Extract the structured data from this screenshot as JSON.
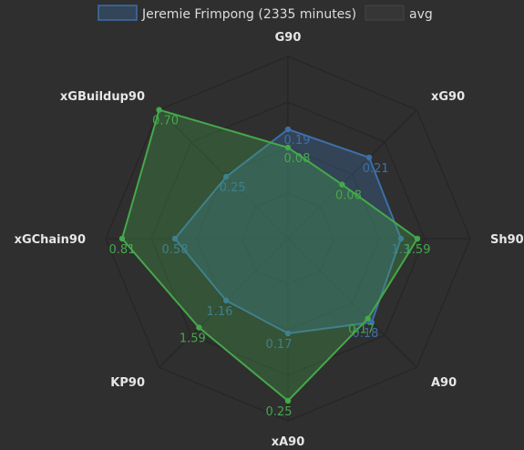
{
  "chart_data": {
    "type": "radar",
    "axes": [
      "G90",
      "xG90",
      "Sh90",
      "A90",
      "xA90",
      "KP90",
      "xGChain90",
      "xGBuildup90"
    ],
    "series": [
      {
        "name": "Jeremie Frimpong (2335 minutes)",
        "color": "#3d6fa8",
        "values": [
          0.19,
          0.21,
          1.3,
          0.18,
          0.17,
          1.16,
          0.58,
          0.25
        ],
        "labels": [
          "0.19",
          "0.21",
          "1.3",
          "0.18",
          "0.17",
          "1.16",
          "0.58",
          "0.25"
        ],
        "radii": [
          0.6,
          0.63,
          0.62,
          0.65,
          0.52,
          0.48,
          0.62,
          0.48
        ]
      },
      {
        "name": "avg",
        "color": "#45a84b",
        "values": [
          0.08,
          0.08,
          1.59,
          0.17,
          0.25,
          1.59,
          0.81,
          0.7
        ],
        "labels": [
          "0.08",
          "0.08",
          "1.59",
          "0.17",
          "0.25",
          "1.59",
          "0.81",
          "0.70"
        ],
        "radii": [
          0.5,
          0.42,
          0.71,
          0.62,
          0.89,
          0.69,
          0.91,
          1.0
        ]
      }
    ],
    "grid": true,
    "legend_position": "top"
  }
}
